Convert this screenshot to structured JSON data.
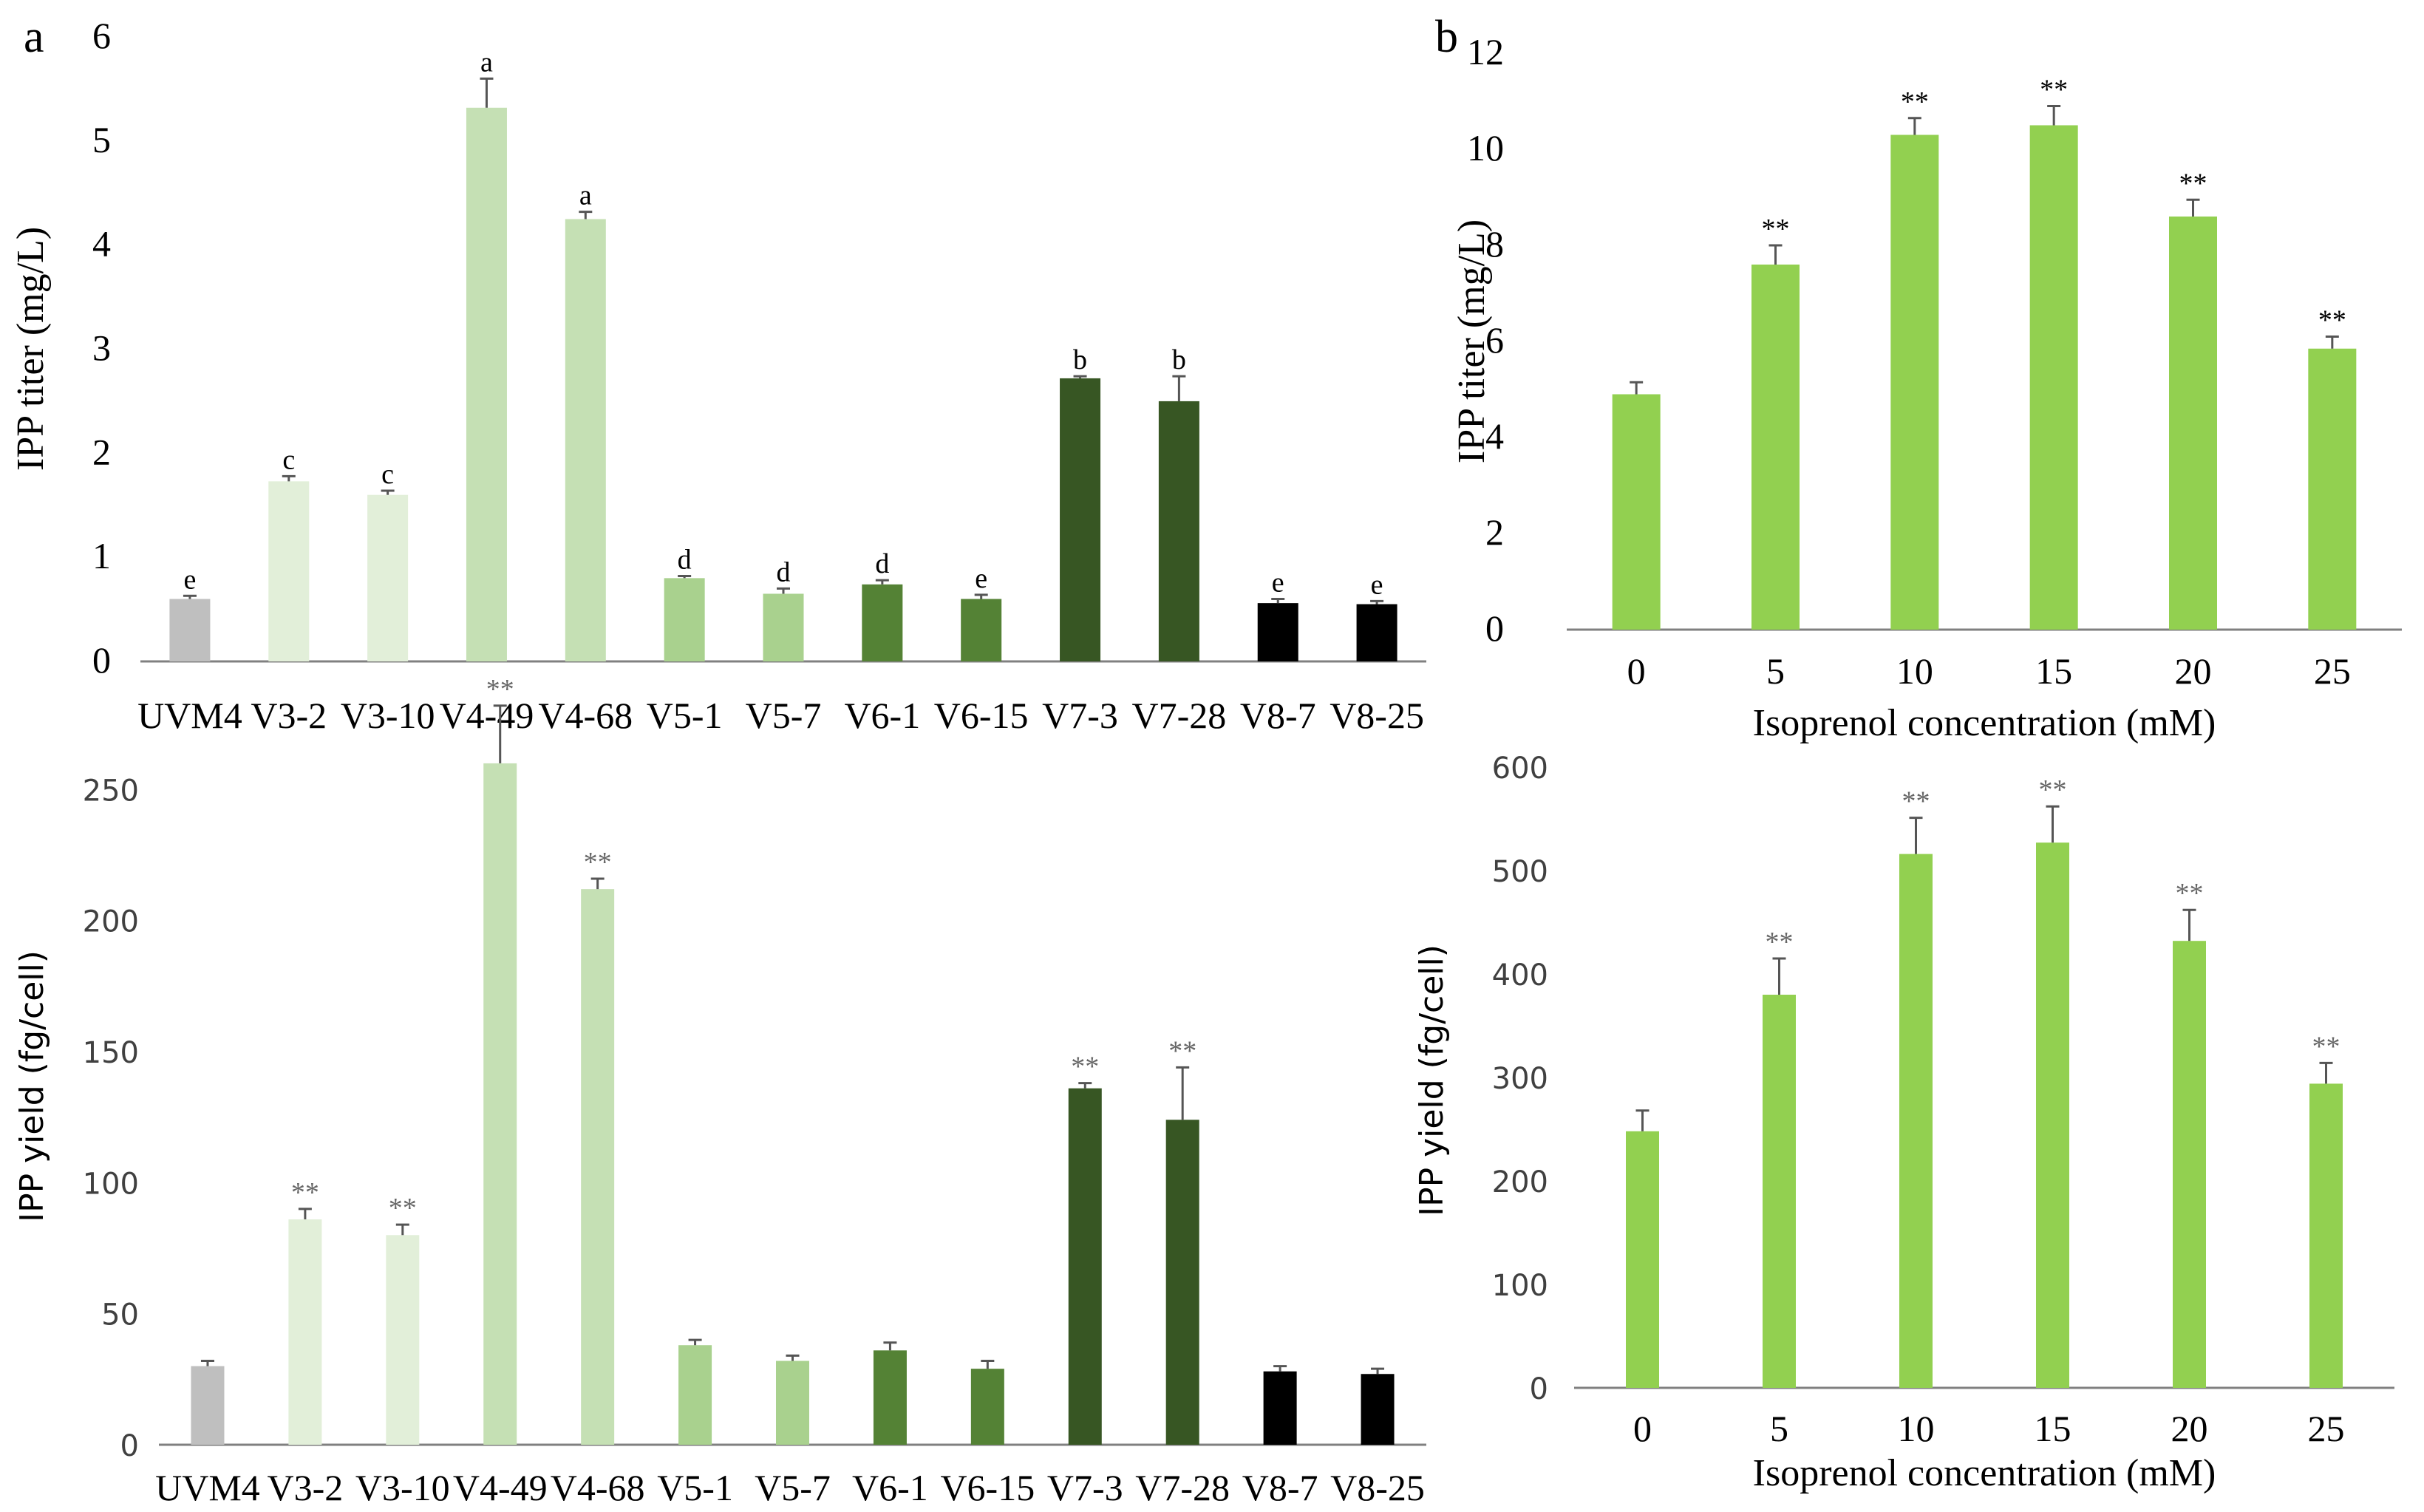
{
  "panels": {
    "a": "a",
    "b": "b"
  },
  "chart_data": [
    {
      "id": "a-top",
      "type": "bar",
      "title": "",
      "xlabel": "",
      "ylabel": "IPP titer (mg/L)",
      "ylim": [
        0,
        6
      ],
      "yticks": [
        0,
        1,
        2,
        3,
        4,
        5,
        6
      ],
      "categories": [
        "UVM4",
        "V3-2",
        "V3-10",
        "V4-49",
        "V4-68",
        "V5-1",
        "V5-7",
        "V6-1",
        "V6-15",
        "V7-3",
        "V7-28",
        "V8-7",
        "V8-25"
      ],
      "values": [
        0.6,
        1.73,
        1.6,
        5.32,
        4.25,
        0.8,
        0.65,
        0.74,
        0.6,
        2.72,
        2.5,
        0.56,
        0.55
      ],
      "errors": [
        0.03,
        0.05,
        0.04,
        0.28,
        0.07,
        0.02,
        0.05,
        0.04,
        0.04,
        0.02,
        0.24,
        0.04,
        0.03
      ],
      "labels": [
        "e",
        "c",
        "c",
        "a",
        "a",
        "d",
        "d",
        "d",
        "e",
        "b",
        "b",
        "e",
        "e"
      ],
      "colors": [
        "#BFBFBF",
        "#E2EFD9",
        "#E2EFD9",
        "#C5E0B4",
        "#C5E0B4",
        "#A9D18E",
        "#A9D18E",
        "#548235",
        "#548235",
        "#375623",
        "#375623",
        "#000000",
        "#000000"
      ],
      "grid": false
    },
    {
      "id": "a-bottom",
      "type": "bar",
      "title": "",
      "xlabel": "",
      "ylabel": "IPP yield (fg/cell)",
      "ylim": [
        0,
        280
      ],
      "yticks": [
        0,
        50,
        100,
        150,
        200,
        250
      ],
      "categories": [
        "UVM4",
        "V3-2",
        "V3-10",
        "V4-49",
        "V4-68",
        "V5-1",
        "V5-7",
        "V6-1",
        "V6-15",
        "V7-3",
        "V7-28",
        "V8-7",
        "V8-25"
      ],
      "values": [
        30,
        86,
        80,
        260,
        212,
        38,
        32,
        36,
        29,
        136,
        124,
        28,
        27
      ],
      "errors": [
        2,
        4,
        4,
        22,
        4,
        2,
        2,
        3,
        3,
        2,
        20,
        2,
        2
      ],
      "labels": [
        "",
        "**",
        "**",
        "**",
        "**",
        "",
        "",
        "",
        "",
        "**",
        "**",
        "",
        ""
      ],
      "colors": [
        "#BFBFBF",
        "#E2EFD9",
        "#E2EFD9",
        "#C5E0B4",
        "#C5E0B4",
        "#A9D18E",
        "#A9D18E",
        "#548235",
        "#548235",
        "#375623",
        "#375623",
        "#000000",
        "#000000"
      ],
      "grid": false
    },
    {
      "id": "b-top",
      "type": "bar",
      "title": "",
      "xlabel": "Isoprenol concentration (mM)",
      "ylabel": "IPP titer (mg/L)",
      "ylim": [
        0,
        12
      ],
      "yticks": [
        0,
        2,
        4,
        6,
        8,
        10,
        12
      ],
      "categories": [
        "0",
        "5",
        "10",
        "15",
        "20",
        "25"
      ],
      "values": [
        4.9,
        7.6,
        10.3,
        10.5,
        8.6,
        5.85
      ],
      "errors": [
        0.25,
        0.4,
        0.35,
        0.4,
        0.35,
        0.25
      ],
      "labels": [
        "",
        "**",
        "**",
        "**",
        "**",
        "**"
      ],
      "colors": [
        "#92D050",
        "#92D050",
        "#92D050",
        "#92D050",
        "#92D050",
        "#92D050"
      ],
      "grid": false
    },
    {
      "id": "b-bottom",
      "type": "bar",
      "title": "",
      "xlabel": "Isoprenol concentration (mM)",
      "ylabel": "IPP yield (fg/cell)",
      "ylim": [
        0,
        600
      ],
      "yticks": [
        0,
        100,
        200,
        300,
        400,
        500,
        600
      ],
      "categories": [
        "0",
        "5",
        "10",
        "15",
        "20",
        "25"
      ],
      "values": [
        248,
        380,
        516,
        527,
        432,
        294
      ],
      "errors": [
        20,
        35,
        35,
        35,
        30,
        20
      ],
      "labels": [
        "",
        "**",
        "**",
        "**",
        "**",
        "**"
      ],
      "colors": [
        "#92D050",
        "#92D050",
        "#92D050",
        "#92D050",
        "#92D050",
        "#92D050"
      ],
      "grid": false
    }
  ]
}
